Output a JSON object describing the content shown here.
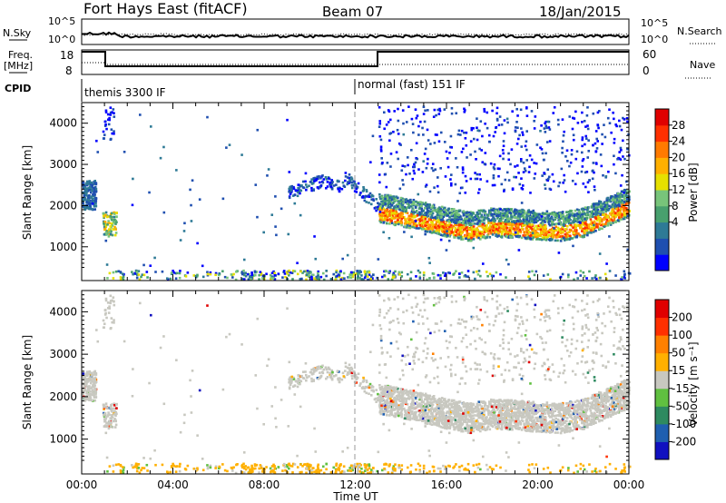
{
  "header": {
    "station": "Fort Hays East (fitACF)",
    "beam": "Beam 07",
    "date": "18/Jan/2015"
  },
  "summary_panels": {
    "nsky_label": "N.Sky",
    "nsky_ticks": [
      "10^5",
      "10^0"
    ],
    "nsearch_label": "N.Search",
    "freq_label_1": "Freq.",
    "freq_label_2": "[MHz]",
    "freq_ticks": [
      "18",
      "8"
    ],
    "nave_ticks": [
      "60",
      "0"
    ],
    "nave_label": "Nave",
    "cpid_label": "CPID",
    "cpid_modes": [
      "themis 3300 IF",
      "normal (fast) 151 IF"
    ]
  },
  "axes": {
    "xlabel": "Time UT",
    "xticks": [
      "00:00",
      "04:00",
      "08:00",
      "12:00",
      "16:00",
      "20:00",
      "00:00"
    ],
    "ylabel": "Slant Range [km]",
    "yticks": [
      "4000",
      "3000",
      "2000",
      "1000"
    ]
  },
  "power_scale": {
    "label": "Power [dB]",
    "ticks": [
      "28",
      "24",
      "20",
      "16",
      "12",
      "8",
      "4"
    ],
    "colors": [
      "#0000ff",
      "#1f4fb0",
      "#2e7a96",
      "#48a06e",
      "#78c47a",
      "#e6e000",
      "#ffb000",
      "#ff7a00",
      "#ff3000",
      "#e00000"
    ]
  },
  "velocity_scale": {
    "label": "Velocity [m s⁻¹]",
    "ticks": [
      "200",
      "100",
      "50",
      "15",
      "-15",
      "-50",
      "-100",
      "-200"
    ],
    "colors": [
      "#1010c0",
      "#1f5fb0",
      "#2e8a60",
      "#60c040",
      "#c8c8c0",
      "#ffb000",
      "#ff8000",
      "#ff3000",
      "#e00000"
    ]
  },
  "chart_data": [
    {
      "type": "heatmap",
      "title": "Power [dB]",
      "xlabel": "Time UT",
      "ylabel": "Slant Range [km]",
      "xlim": [
        0,
        24
      ],
      "ylim": [
        180,
        4500
      ],
      "colorbar_ticks": [
        4,
        8,
        12,
        16,
        20,
        24,
        28
      ],
      "band_center_km": [
        [
          13.0,
          1800
        ],
        [
          14.5,
          1650
        ],
        [
          16.0,
          1450
        ],
        [
          17.0,
          1350
        ],
        [
          18.0,
          1450
        ],
        [
          19.0,
          1420
        ],
        [
          20.0,
          1380
        ],
        [
          21.0,
          1350
        ],
        [
          22.0,
          1450
        ],
        [
          23.0,
          1700
        ],
        [
          24.0,
          1950
        ]
      ]
    },
    {
      "type": "heatmap",
      "title": "Velocity [m s⁻¹]",
      "xlabel": "Time UT",
      "ylabel": "Slant Range [km]",
      "xlim": [
        0,
        24
      ],
      "ylim": [
        180,
        4500
      ],
      "colorbar_ticks": [
        200,
        100,
        50,
        15,
        -15,
        -50,
        -100,
        -200
      ]
    }
  ]
}
